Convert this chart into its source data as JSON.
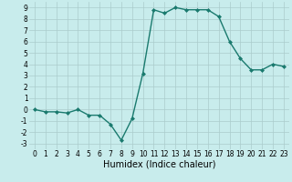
{
  "x": [
    0,
    1,
    2,
    3,
    4,
    5,
    6,
    7,
    8,
    9,
    10,
    11,
    12,
    13,
    14,
    15,
    16,
    17,
    18,
    19,
    20,
    21,
    22,
    23
  ],
  "y": [
    0,
    -0.2,
    -0.2,
    -0.3,
    0,
    -0.5,
    -0.5,
    -1.3,
    -2.7,
    -0.8,
    3.2,
    8.8,
    8.5,
    9.0,
    8.8,
    8.8,
    8.8,
    8.2,
    6.0,
    4.5,
    3.5,
    3.5,
    4.0,
    3.8
  ],
  "line_color": "#1a7a6e",
  "marker": "D",
  "marker_size": 2.0,
  "linewidth": 1.0,
  "bg_color": "#c8ecec",
  "grid_color": "#aacccc",
  "xlabel": "Humidex (Indice chaleur)",
  "xlim": [
    -0.5,
    23.5
  ],
  "ylim": [
    -3.5,
    9.5
  ],
  "yticks": [
    -3,
    -2,
    -1,
    0,
    1,
    2,
    3,
    4,
    5,
    6,
    7,
    8,
    9
  ],
  "xticks": [
    0,
    1,
    2,
    3,
    4,
    5,
    6,
    7,
    8,
    9,
    10,
    11,
    12,
    13,
    14,
    15,
    16,
    17,
    18,
    19,
    20,
    21,
    22,
    23
  ],
  "tick_fontsize": 5.5,
  "label_fontsize": 7.0
}
